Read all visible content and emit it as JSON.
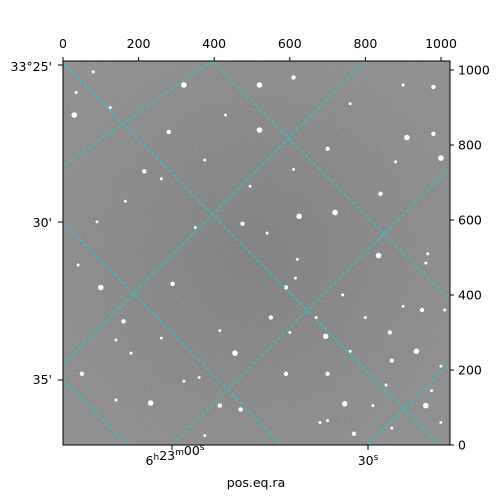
{
  "chart_data": {
    "type": "scatter",
    "title": "",
    "xlabel": "pos.eq.ra",
    "pixel_axes": {
      "x_ticks": [
        0,
        200,
        400,
        600,
        800,
        1000
      ],
      "x_tick_labels": [
        "0",
        "200",
        "400",
        "600",
        "800",
        "1000"
      ],
      "y_ticks": [
        0,
        200,
        400,
        600,
        800,
        1000
      ],
      "y_tick_labels": [
        "0",
        "200",
        "400",
        "600",
        "800",
        "1000"
      ],
      "xlim": [
        0,
        1024
      ],
      "ylim": [
        0,
        1024
      ]
    },
    "world_axes": {
      "ra_tick_labels": [
        "6h23m00s",
        "30s"
      ],
      "dec_tick_labels": [
        "33°25'",
        "30'",
        "35'"
      ]
    },
    "image": {
      "colormap": "gray",
      "background": "#7a7a7a",
      "grid": true,
      "grid_color": "#19d3d3",
      "grid_style": "dashed"
    },
    "stars": [
      [
        232,
        112
      ],
      [
        680,
        60
      ],
      [
        700,
        65
      ],
      [
        770,
        30
      ],
      [
        375,
        25
      ],
      [
        625,
        610
      ],
      [
        415,
        105
      ],
      [
        870,
        45
      ],
      [
        1000,
        60
      ],
      [
        470,
        95
      ],
      [
        320,
        960
      ],
      [
        165,
        650
      ],
      [
        590,
        420
      ],
      [
        615,
        445
      ],
      [
        620,
        495
      ],
      [
        695,
        290
      ],
      [
        760,
        250
      ],
      [
        495,
        690
      ],
      [
        840,
        670
      ],
      [
        880,
        755
      ],
      [
        910,
        820
      ],
      [
        980,
        830
      ],
      [
        35,
        940
      ],
      [
        80,
        995
      ],
      [
        700,
        190
      ],
      [
        520,
        840
      ],
      [
        1010,
        360
      ],
      [
        950,
        360
      ],
      [
        1000,
        210
      ],
      [
        975,
        145
      ],
      [
        960,
        105
      ],
      [
        965,
        510
      ],
      [
        900,
        370
      ],
      [
        50,
        190
      ],
      [
        140,
        120
      ],
      [
        30,
        880
      ],
      [
        290,
        430
      ],
      [
        125,
        900
      ],
      [
        260,
        710
      ],
      [
        475,
        590
      ],
      [
        835,
        505
      ],
      [
        375,
        760
      ],
      [
        590,
        190
      ],
      [
        740,
        400
      ],
      [
        800,
        340
      ],
      [
        720,
        620
      ],
      [
        415,
        305
      ],
      [
        320,
        170
      ],
      [
        215,
        730
      ],
      [
        40,
        480
      ],
      [
        100,
        420
      ],
      [
        160,
        330
      ],
      [
        260,
        285
      ],
      [
        670,
        340
      ],
      [
        865,
        300
      ],
      [
        935,
        250
      ],
      [
        180,
        245
      ],
      [
        550,
        340
      ],
      [
        820,
        105
      ],
      [
        600,
        300
      ],
      [
        745,
        110
      ],
      [
        350,
        580
      ],
      [
        90,
        595
      ],
      [
        280,
        835
      ],
      [
        430,
        880
      ],
      [
        520,
        960
      ],
      [
        610,
        980
      ],
      [
        760,
        910
      ],
      [
        900,
        960
      ],
      [
        980,
        955
      ],
      [
        1000,
        765
      ],
      [
        855,
        160
      ],
      [
        870,
        225
      ],
      [
        140,
        280
      ],
      [
        360,
        180
      ],
      [
        455,
        245
      ],
      [
        540,
        565
      ],
      [
        610,
        735
      ],
      [
        700,
        790
      ],
      [
        960,
        485
      ]
    ]
  }
}
